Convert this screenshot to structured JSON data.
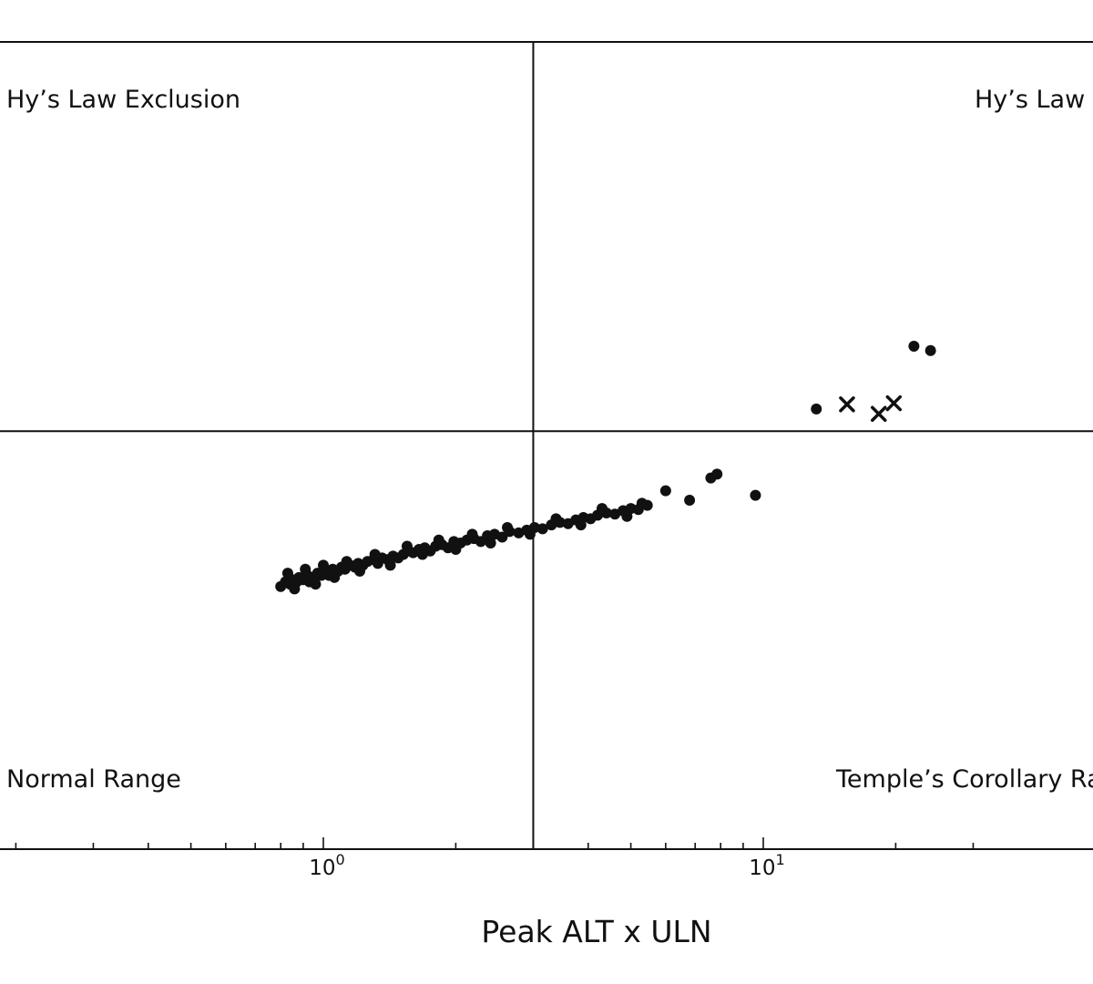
{
  "chart_data": {
    "type": "scatter",
    "x_scale": "log",
    "y_scale": "log",
    "xlabel": "Peak ALT x ULN",
    "xlim": [
      0.1,
      35
    ],
    "ylim": [
      0.03,
      100
    ],
    "x_ticks": [
      {
        "value": 1,
        "base": "10",
        "exp": "0"
      },
      {
        "value": 10,
        "base": "10",
        "exp": "1"
      }
    ],
    "threshold_x": 3,
    "threshold_y": 2,
    "region_labels": {
      "top_left": "Hy’s Law Exclusion",
      "top_right": "Hy’s Law R",
      "bottom_left": "Normal Range",
      "bottom_right": "Temple’s Corollary Ra"
    },
    "series": [
      {
        "marker": "circle",
        "points": [
          [
            0.8,
            0.42
          ],
          [
            0.82,
            0.44
          ],
          [
            0.84,
            0.43
          ],
          [
            0.85,
            0.45
          ],
          [
            0.87,
            0.44
          ],
          [
            0.88,
            0.46
          ],
          [
            0.9,
            0.45
          ],
          [
            0.92,
            0.47
          ],
          [
            0.93,
            0.44
          ],
          [
            0.95,
            0.46
          ],
          [
            0.97,
            0.48
          ],
          [
            0.99,
            0.47
          ],
          [
            1.01,
            0.49
          ],
          [
            1.03,
            0.47
          ],
          [
            1.05,
            0.5
          ],
          [
            1.08,
            0.49
          ],
          [
            1.1,
            0.51
          ],
          [
            1.12,
            0.5
          ],
          [
            1.15,
            0.52
          ],
          [
            1.18,
            0.51
          ],
          [
            1.2,
            0.53
          ],
          [
            1.23,
            0.52
          ],
          [
            1.26,
            0.54
          ],
          [
            1.3,
            0.55
          ],
          [
            1.33,
            0.53
          ],
          [
            1.36,
            0.56
          ],
          [
            1.4,
            0.55
          ],
          [
            1.44,
            0.57
          ],
          [
            1.48,
            0.56
          ],
          [
            1.52,
            0.58
          ],
          [
            1.56,
            0.6
          ],
          [
            1.6,
            0.59
          ],
          [
            1.65,
            0.61
          ],
          [
            1.7,
            0.62
          ],
          [
            1.75,
            0.6
          ],
          [
            1.8,
            0.63
          ],
          [
            1.86,
            0.64
          ],
          [
            1.92,
            0.62
          ],
          [
            1.98,
            0.66
          ],
          [
            2.05,
            0.65
          ],
          [
            2.12,
            0.67
          ],
          [
            2.2,
            0.68
          ],
          [
            2.28,
            0.66
          ],
          [
            2.36,
            0.7
          ],
          [
            2.45,
            0.71
          ],
          [
            2.55,
            0.69
          ],
          [
            2.65,
            0.73
          ],
          [
            2.78,
            0.72
          ],
          [
            2.9,
            0.74
          ],
          [
            3.02,
            0.76
          ],
          [
            3.15,
            0.75
          ],
          [
            3.3,
            0.78
          ],
          [
            3.45,
            0.8
          ],
          [
            3.6,
            0.79
          ],
          [
            3.75,
            0.82
          ],
          [
            3.9,
            0.84
          ],
          [
            4.05,
            0.83
          ],
          [
            4.2,
            0.86
          ],
          [
            4.4,
            0.88
          ],
          [
            4.6,
            0.87
          ],
          [
            4.8,
            0.9
          ],
          [
            5.0,
            0.92
          ],
          [
            5.2,
            0.91
          ],
          [
            5.45,
            0.95
          ],
          [
            0.83,
            0.48
          ],
          [
            0.86,
            0.41
          ],
          [
            0.91,
            0.5
          ],
          [
            0.96,
            0.43
          ],
          [
            1.0,
            0.52
          ],
          [
            1.06,
            0.46
          ],
          [
            1.13,
            0.54
          ],
          [
            1.21,
            0.49
          ],
          [
            1.31,
            0.58
          ],
          [
            1.42,
            0.52
          ],
          [
            1.55,
            0.63
          ],
          [
            1.68,
            0.58
          ],
          [
            1.83,
            0.67
          ],
          [
            2.0,
            0.61
          ],
          [
            2.18,
            0.71
          ],
          [
            2.4,
            0.65
          ],
          [
            2.62,
            0.76
          ],
          [
            2.95,
            0.71
          ],
          [
            3.38,
            0.83
          ],
          [
            3.85,
            0.78
          ],
          [
            4.3,
            0.92
          ],
          [
            4.9,
            0.85
          ],
          [
            5.3,
            0.97
          ],
          [
            6.0,
            1.1
          ],
          [
            6.8,
            1.0
          ],
          [
            7.6,
            1.25
          ],
          [
            7.85,
            1.3
          ],
          [
            9.6,
            1.05
          ],
          [
            13.2,
            2.5
          ],
          [
            22.0,
            4.7
          ],
          [
            24.0,
            4.5
          ]
        ]
      },
      {
        "marker": "x",
        "points": [
          [
            15.5,
            2.62
          ],
          [
            18.3,
            2.38
          ],
          [
            19.8,
            2.65
          ]
        ]
      }
    ]
  }
}
